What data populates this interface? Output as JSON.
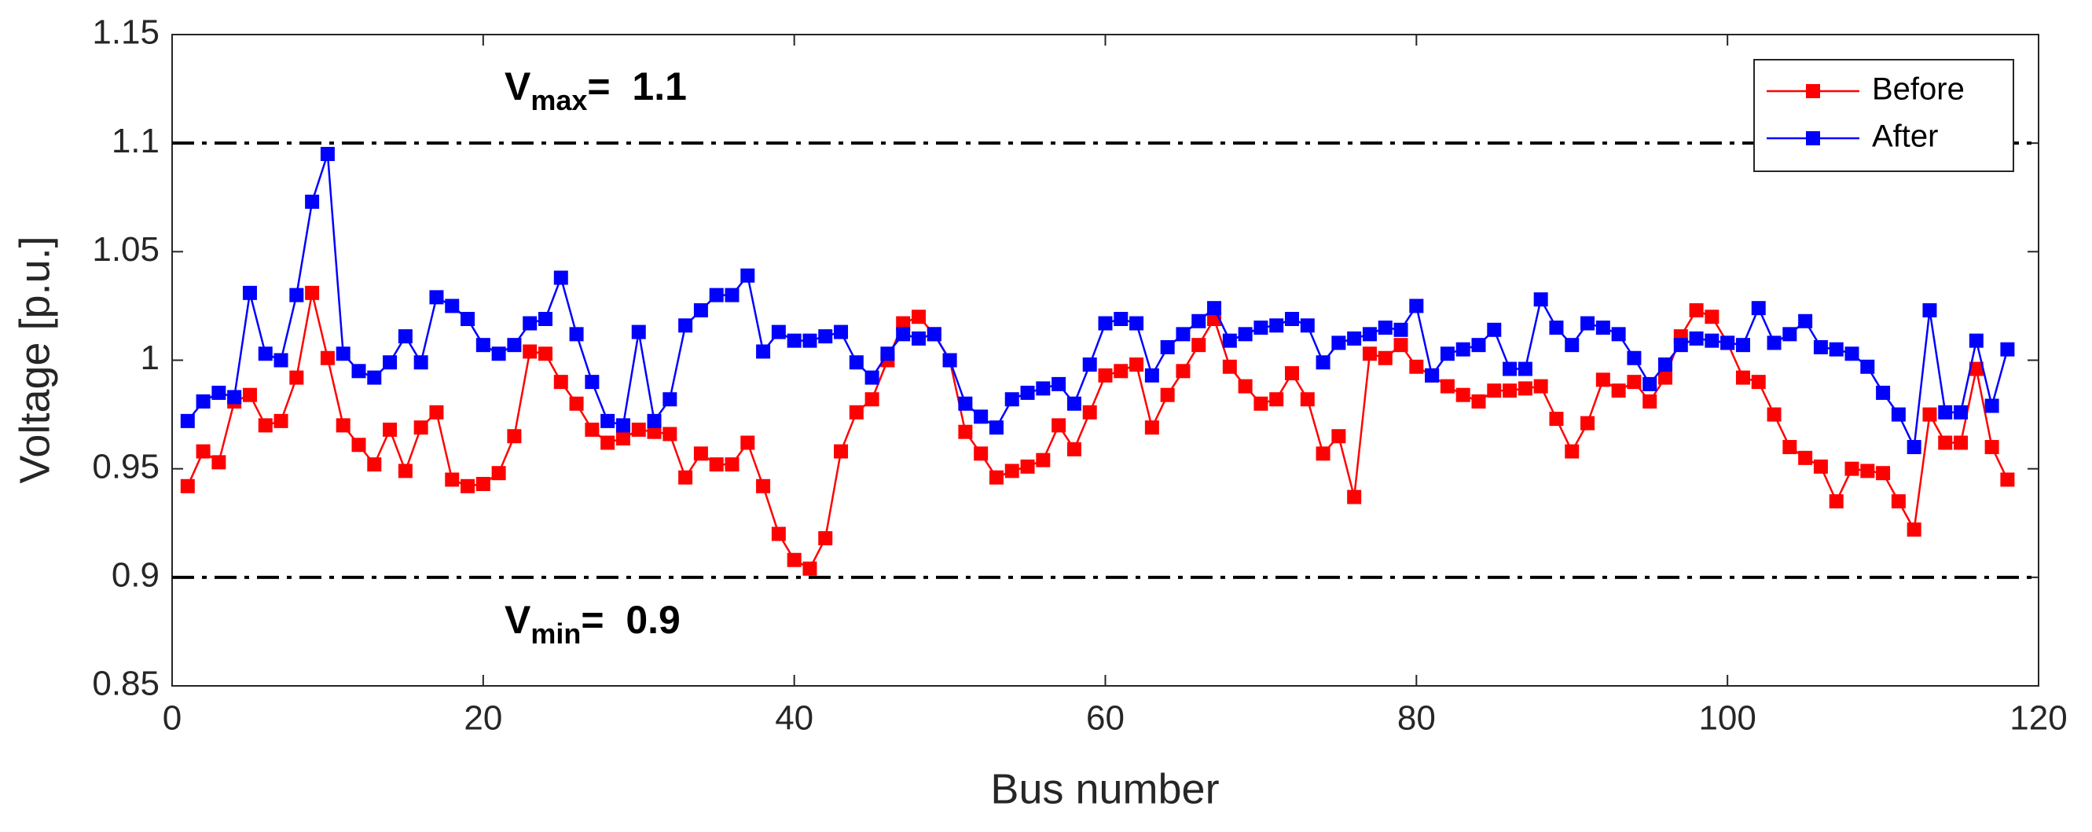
{
  "chart_data": {
    "type": "line",
    "x_label": "Bus number",
    "y_label": "Voltage [p.u.]",
    "xlim": [
      0,
      120
    ],
    "xticks": [
      0,
      20,
      40,
      60,
      80,
      100,
      120
    ],
    "ylim": [
      0.85,
      1.15
    ],
    "yticks": [
      0.85,
      0.9,
      0.95,
      1,
      1.05,
      1.1,
      1.15
    ],
    "grid": false,
    "legend_position": "upper-right",
    "reference_lines": [
      1.1,
      0.9
    ],
    "annotations": [
      {
        "text": "V",
        "subscript": "max",
        "suffix": "=  1.1",
        "y": 1.1
      },
      {
        "text": "V",
        "subscript": "min",
        "suffix": "=  0.9",
        "y": 0.9
      }
    ],
    "x": [
      1,
      2,
      3,
      4,
      5,
      6,
      7,
      8,
      9,
      10,
      11,
      12,
      13,
      14,
      15,
      16,
      17,
      18,
      19,
      20,
      21,
      22,
      23,
      24,
      25,
      26,
      27,
      28,
      29,
      30,
      31,
      32,
      33,
      34,
      35,
      36,
      37,
      38,
      39,
      40,
      41,
      42,
      43,
      44,
      45,
      46,
      47,
      48,
      49,
      50,
      51,
      52,
      53,
      54,
      55,
      56,
      57,
      58,
      59,
      60,
      61,
      62,
      63,
      64,
      65,
      66,
      67,
      68,
      69,
      70,
      71,
      72,
      73,
      74,
      75,
      76,
      77,
      78,
      79,
      80,
      81,
      82,
      83,
      84,
      85,
      86,
      87,
      88,
      89,
      90,
      91,
      92,
      93,
      94,
      95,
      96,
      97,
      98,
      99,
      100,
      101,
      102,
      103,
      104,
      105,
      106,
      107,
      108,
      109,
      110,
      111,
      112,
      113,
      114,
      115,
      116,
      117,
      118
    ],
    "series": [
      {
        "name": "Before",
        "color": "#ff0000",
        "values": [
          0.942,
          0.958,
          0.953,
          0.981,
          0.984,
          0.97,
          0.972,
          0.992,
          1.031,
          1.001,
          0.97,
          0.961,
          0.952,
          0.968,
          0.949,
          0.969,
          0.976,
          0.945,
          0.942,
          0.943,
          0.948,
          0.965,
          1.004,
          1.003,
          0.99,
          0.98,
          0.968,
          0.962,
          0.964,
          0.968,
          0.967,
          0.966,
          0.946,
          0.957,
          0.952,
          0.952,
          0.962,
          0.942,
          0.92,
          0.908,
          0.904,
          0.918,
          0.958,
          0.976,
          0.982,
          1.0,
          1.017,
          1.02,
          1.012,
          1.0,
          0.967,
          0.957,
          0.946,
          0.949,
          0.951,
          0.954,
          0.97,
          0.959,
          0.976,
          0.993,
          0.995,
          0.998,
          0.969,
          0.984,
          0.995,
          1.007,
          1.019,
          0.997,
          0.988,
          0.98,
          0.982,
          0.994,
          0.982,
          0.957,
          0.965,
          0.937,
          1.003,
          1.001,
          1.007,
          0.997,
          0.993,
          0.988,
          0.984,
          0.981,
          0.986,
          0.986,
          0.987,
          0.988,
          0.973,
          0.958,
          0.971,
          0.991,
          0.986,
          0.99,
          0.981,
          0.992,
          1.011,
          1.023,
          1.02,
          1.008,
          0.992,
          0.99,
          0.975,
          0.96,
          0.955,
          0.951,
          0.935,
          0.95,
          0.949,
          0.948,
          0.935,
          0.922,
          0.975,
          0.962,
          0.962,
          0.996,
          0.96,
          0.945
        ]
      },
      {
        "name": "After",
        "color": "#0000ff",
        "values": [
          0.972,
          0.981,
          0.985,
          0.983,
          1.031,
          1.003,
          1.0,
          1.03,
          1.073,
          1.095,
          1.003,
          0.995,
          0.992,
          0.999,
          1.011,
          0.999,
          1.029,
          1.025,
          1.019,
          1.007,
          1.003,
          1.007,
          1.017,
          1.019,
          1.038,
          1.012,
          0.99,
          0.972,
          0.97,
          1.013,
          0.972,
          0.982,
          1.016,
          1.023,
          1.03,
          1.03,
          1.039,
          1.004,
          1.013,
          1.009,
          1.009,
          1.011,
          1.013,
          0.999,
          0.992,
          1.003,
          1.012,
          1.01,
          1.012,
          1.0,
          0.98,
          0.974,
          0.969,
          0.982,
          0.985,
          0.987,
          0.989,
          0.98,
          0.998,
          1.017,
          1.019,
          1.017,
          0.993,
          1.006,
          1.012,
          1.018,
          1.024,
          1.009,
          1.012,
          1.015,
          1.016,
          1.019,
          1.016,
          0.999,
          1.008,
          1.01,
          1.012,
          1.015,
          1.014,
          1.025,
          0.993,
          1.003,
          1.005,
          1.007,
          1.014,
          0.996,
          0.996,
          1.028,
          1.015,
          1.007,
          1.017,
          1.015,
          1.012,
          1.001,
          0.989,
          0.998,
          1.007,
          1.01,
          1.009,
          1.008,
          1.007,
          1.024,
          1.008,
          1.012,
          1.018,
          1.006,
          1.005,
          1.003,
          0.997,
          0.985,
          0.975,
          0.96,
          1.023,
          0.976,
          0.976,
          1.009,
          0.979,
          1.005
        ]
      }
    ]
  }
}
